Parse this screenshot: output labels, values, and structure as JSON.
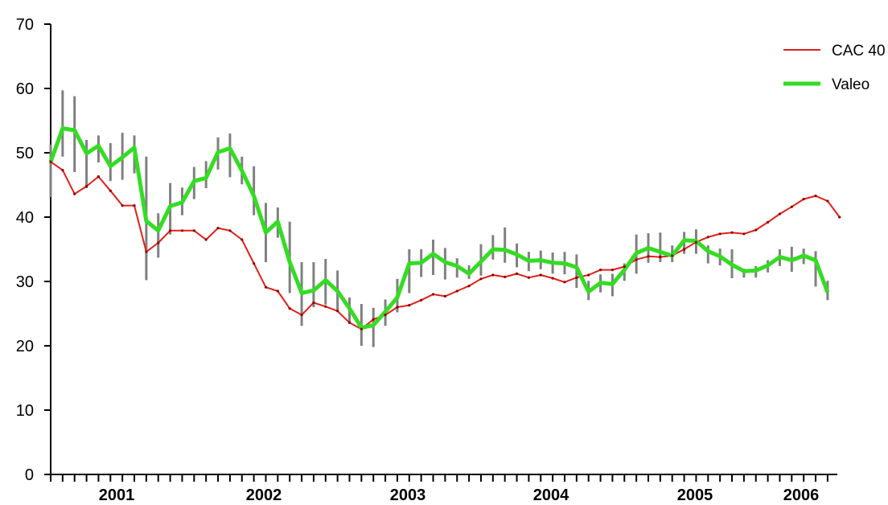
{
  "chart_data": {
    "type": "line",
    "title": "",
    "xlabel": "",
    "ylabel": "",
    "ylim": [
      0,
      70
    ],
    "yticks": [
      "0",
      "10",
      "20",
      "30",
      "40",
      "50",
      "60",
      "70"
    ],
    "year_labels": [
      "2001",
      "2002",
      "2003",
      "2004",
      "2005",
      "2006"
    ],
    "legend_position": "top-right",
    "grid": false,
    "series": [
      {
        "name": "CAC 40",
        "color": "#e0201a",
        "values": [
          48.6,
          47.3,
          43.6,
          44.8,
          46.3,
          44.1,
          41.8,
          41.8,
          34.6,
          36.0,
          37.9,
          37.9,
          37.9,
          36.5,
          38.3,
          37.9,
          36.5,
          32.8,
          29.1,
          28.5,
          25.8,
          24.8,
          26.7,
          26.1,
          25.4,
          23.6,
          22.6,
          24.1,
          24.8,
          26.0,
          26.3,
          27.1,
          28.0,
          27.7,
          28.5,
          29.3,
          30.4,
          31.0,
          30.7,
          31.2,
          30.6,
          31.0,
          30.5,
          29.9,
          30.6,
          31.0,
          31.8,
          31.8,
          32.3,
          33.4,
          33.9,
          33.8,
          34.0,
          35.0,
          36.1,
          36.9,
          37.4,
          37.6,
          37.4,
          38.0,
          39.2,
          40.5,
          41.6,
          42.8,
          43.3,
          42.5,
          40.0
        ]
      },
      {
        "name": "Valeo",
        "color": "#33dd22",
        "values": [
          48.6,
          53.8,
          53.5,
          49.9,
          51.1,
          47.9,
          49.3,
          50.8,
          39.4,
          37.9,
          41.7,
          42.3,
          45.6,
          46.1,
          50.1,
          50.7,
          47.2,
          43.3,
          37.6,
          39.3,
          33.0,
          28.2,
          28.6,
          30.2,
          28.5,
          25.8,
          22.8,
          23.2,
          25.3,
          27.5,
          32.8,
          32.9,
          34.3,
          33.0,
          32.4,
          31.2,
          33.1,
          35.0,
          34.9,
          34.2,
          33.2,
          33.3,
          32.9,
          32.8,
          32.2,
          28.4,
          29.8,
          29.6,
          31.8,
          34.4,
          35.2,
          34.6,
          34.0,
          36.4,
          36.3,
          34.7,
          33.9,
          32.6,
          31.6,
          31.7,
          32.5,
          33.8,
          33.3,
          34.0,
          33.3,
          28.3
        ]
      }
    ],
    "range_bars": [
      [
        43.1,
        51.3
      ],
      [
        49.4,
        59.7
      ],
      [
        47.0,
        58.8
      ],
      [
        44.5,
        52.0
      ],
      [
        48.5,
        52.7
      ],
      [
        45.6,
        51.5
      ],
      [
        45.8,
        53.1
      ],
      [
        46.8,
        52.7
      ],
      [
        30.2,
        49.4
      ],
      [
        33.7,
        40.6
      ],
      [
        37.3,
        45.3
      ],
      [
        40.3,
        44.6
      ],
      [
        42.8,
        47.8
      ],
      [
        44.5,
        48.7
      ],
      [
        47.4,
        52.4
      ],
      [
        46.2,
        53.0
      ],
      [
        45.1,
        49.4
      ],
      [
        40.3,
        47.9
      ],
      [
        33.0,
        42.2
      ],
      [
        36.8,
        41.5
      ],
      [
        28.2,
        39.3
      ],
      [
        23.1,
        33.0
      ],
      [
        26.0,
        33.0
      ],
      [
        26.4,
        33.5
      ],
      [
        25.4,
        31.7
      ],
      [
        23.4,
        27.5
      ],
      [
        20.0,
        26.5
      ],
      [
        19.8,
        25.9
      ],
      [
        23.1,
        27.2
      ],
      [
        25.2,
        30.4
      ],
      [
        28.2,
        35.0
      ],
      [
        30.7,
        35.0
      ],
      [
        31.0,
        36.5
      ],
      [
        30.3,
        35.2
      ],
      [
        30.6,
        33.6
      ],
      [
        30.4,
        32.5
      ],
      [
        30.9,
        35.8
      ],
      [
        33.4,
        37.2
      ],
      [
        32.9,
        38.4
      ],
      [
        32.2,
        35.9
      ],
      [
        31.6,
        34.6
      ],
      [
        31.9,
        34.8
      ],
      [
        31.2,
        34.5
      ],
      [
        31.1,
        34.6
      ],
      [
        29.0,
        34.2
      ],
      [
        27.1,
        30.1
      ],
      [
        28.3,
        31.1
      ],
      [
        27.7,
        31.2
      ],
      [
        30.1,
        32.8
      ],
      [
        31.2,
        37.3
      ],
      [
        32.9,
        37.5
      ],
      [
        33.0,
        37.6
      ],
      [
        33.0,
        35.6
      ],
      [
        34.3,
        37.7
      ],
      [
        34.3,
        38.1
      ],
      [
        32.8,
        35.6
      ],
      [
        32.5,
        35.1
      ],
      [
        30.5,
        35.0
      ],
      [
        30.6,
        32.0
      ],
      [
        30.6,
        32.4
      ],
      [
        31.4,
        33.3
      ],
      [
        32.4,
        35.0
      ],
      [
        31.5,
        35.4
      ],
      [
        32.7,
        35.1
      ],
      [
        29.2,
        34.7
      ],
      [
        27.1,
        30.1
      ]
    ]
  }
}
